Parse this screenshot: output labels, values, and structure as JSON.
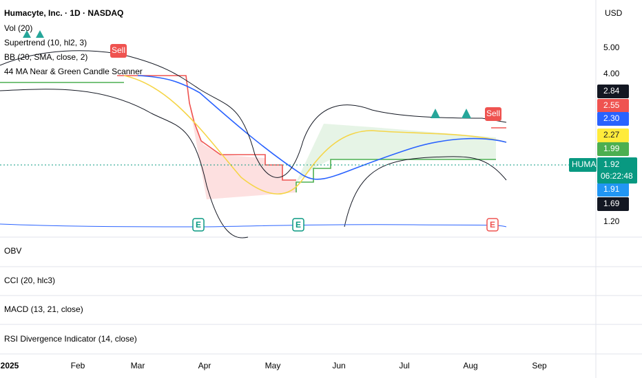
{
  "header": {
    "symbol_title": "Humacyte, Inc. · 1D · NASDAQ",
    "currency": "USD"
  },
  "indicators": [
    "Vol (20)",
    "Supertrend (10, hl2, 3)",
    "BB (20, SMA, close, 2)",
    "44 MA Near & Green Candle Scanner"
  ],
  "signals": [
    "Sell",
    "Sell"
  ],
  "earnings": [
    "E",
    "E",
    "E"
  ],
  "price_axis": [
    "5.00",
    "4.00",
    "1.20"
  ],
  "price_labels": [
    {
      "text": "2.84",
      "color": "#131722"
    },
    {
      "text": "2.55",
      "color": "#ef5350"
    },
    {
      "text": "2.30",
      "color": "#2962ff"
    },
    {
      "text": "2.27",
      "color": "#ffeb3b"
    },
    {
      "text": "1.99",
      "color": "#4caf50"
    },
    {
      "text": "1.91",
      "color": "#2196f3"
    },
    {
      "text": "1.69",
      "color": "#131722"
    }
  ],
  "symbol_tag": "HUMA",
  "last_price": "1.92",
  "countdown": "06:22:48",
  "panes": [
    "OBV",
    "CCI (20, hlc3)",
    "MACD (13, 21, close)",
    "RSI Divergence Indicator (14, close)"
  ],
  "time_axis": [
    "2025",
    "Feb",
    "Mar",
    "Apr",
    "May",
    "Jun",
    "Jul",
    "Aug",
    "Sep"
  ]
}
